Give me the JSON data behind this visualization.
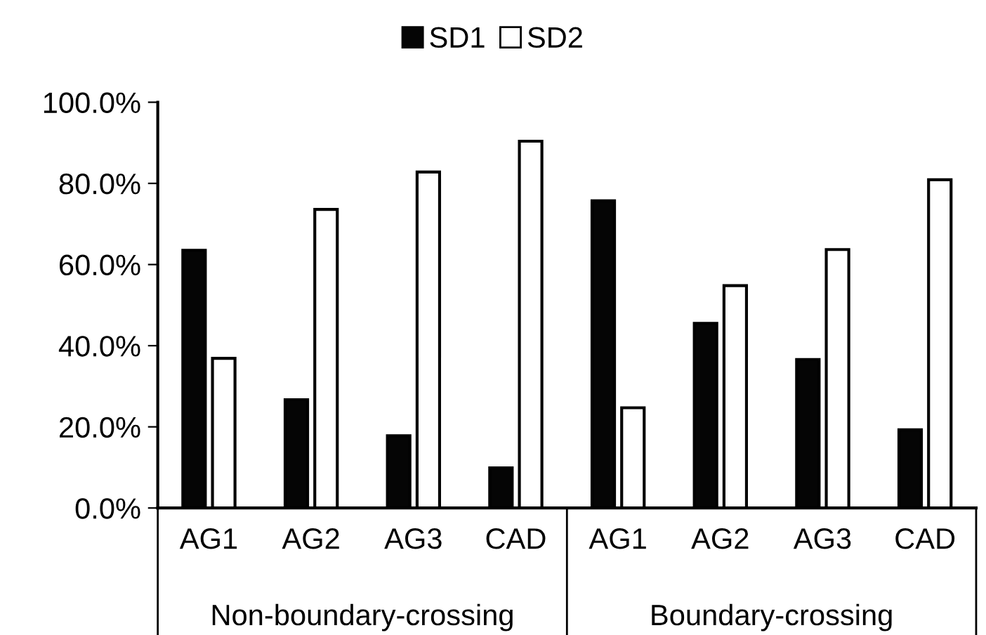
{
  "chart_data": {
    "type": "bar",
    "categories": [
      "AG1",
      "AG2",
      "AG3",
      "CAD",
      "AG1",
      "AG2",
      "AG3",
      "CAD"
    ],
    "series": [
      {
        "name": "SD1",
        "color": "#050505",
        "values": [
          63.5,
          26.7,
          17.8,
          9.9,
          75.7,
          45.5,
          36.6,
          19.3
        ]
      },
      {
        "name": "SD2",
        "color": "#ffffff",
        "values": [
          36.9,
          73.6,
          82.8,
          90.4,
          24.7,
          54.8,
          63.7,
          80.9
        ]
      }
    ],
    "annotations": [
      "Non-boundary-crossing",
      "Boundary-crossing"
    ],
    "ylim": [
      0,
      100
    ],
    "yticks": [
      {
        "value": 0,
        "label": "0.0%"
      },
      {
        "value": 20,
        "label": "20.0%"
      },
      {
        "value": 40,
        "label": "40.0%"
      },
      {
        "value": 60,
        "label": "60.0%"
      },
      {
        "value": 80,
        "label": "80.0%"
      },
      {
        "value": 100,
        "label": "100.0%"
      }
    ],
    "grid": false,
    "legend": "top"
  }
}
